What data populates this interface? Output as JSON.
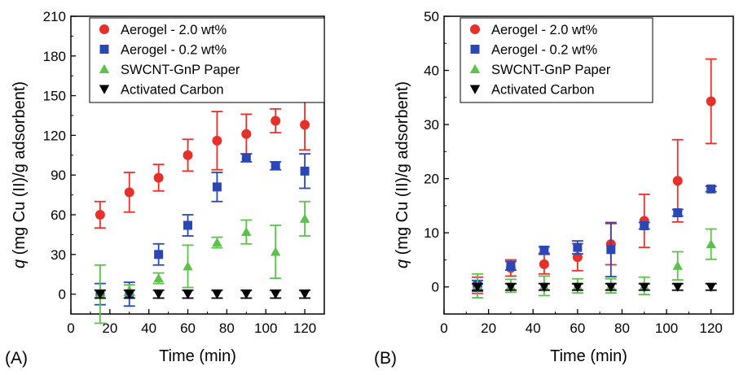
{
  "panel_labels": [
    "(A)",
    "(B)"
  ],
  "colors": {
    "aerogel_2": "#e8302a",
    "aerogel_02": "#2a47b8",
    "paper": "#5cc24a",
    "carbon": "#000000"
  },
  "chart_data": [
    {
      "type": "scatter",
      "panel": "(A)",
      "xlabel": "Time (min)",
      "ylabel_italic": "q",
      "ylabel_rest": " (mg Cu (II)/g adsorbent)",
      "xlim": [
        0,
        130
      ],
      "ylim": [
        -15,
        210
      ],
      "xticks": [
        0,
        20,
        40,
        60,
        80,
        100,
        120
      ],
      "yticks": [
        0,
        30,
        60,
        90,
        120,
        150,
        180,
        210
      ],
      "legend_position": "top-right",
      "series": [
        {
          "name": "Aerogel - 2.0 wt%",
          "marker": "circle",
          "color": "#e8302a",
          "x": [
            15,
            30,
            45,
            60,
            75,
            90,
            105,
            120
          ],
          "y": [
            60,
            77,
            88,
            105,
            116,
            121,
            131,
            128
          ],
          "err": [
            10,
            15,
            10,
            12,
            22,
            15,
            9,
            19
          ]
        },
        {
          "name": "Aerogel - 0.2 wt%",
          "marker": "square",
          "color": "#2a47b8",
          "x": [
            15,
            30,
            45,
            60,
            75,
            90,
            105,
            120
          ],
          "y": [
            0,
            0,
            30,
            52,
            81,
            103,
            97,
            93
          ],
          "err": [
            8,
            9,
            8,
            8,
            11,
            3,
            3,
            13
          ]
        },
        {
          "name": "SWCNT-GnP Paper",
          "marker": "triangle-up",
          "color": "#5cc24a",
          "x": [
            15,
            30,
            45,
            60,
            75,
            90,
            105,
            120
          ],
          "y": [
            0,
            3,
            12,
            21,
            39,
            47,
            32,
            57
          ],
          "err": [
            22,
            4,
            4,
            16,
            4,
            9,
            20,
            13
          ]
        },
        {
          "name": "Activated Carbon",
          "marker": "triangle-down",
          "color": "#000000",
          "x": [
            15,
            30,
            45,
            60,
            75,
            90,
            105,
            120
          ],
          "y": [
            0,
            0,
            0,
            0,
            0,
            0,
            0,
            0
          ],
          "err": [
            3,
            3,
            3,
            3,
            3,
            3,
            3,
            3
          ]
        }
      ]
    },
    {
      "type": "scatter",
      "panel": "(B)",
      "xlabel": "Time (min)",
      "ylabel_italic": "q",
      "ylabel_rest": " (mg Cu (II)/g adsorbent)",
      "xlim": [
        0,
        130
      ],
      "ylim": [
        -5,
        50
      ],
      "xticks": [
        0,
        20,
        40,
        60,
        80,
        100,
        120
      ],
      "yticks": [
        0,
        10,
        20,
        30,
        40,
        50
      ],
      "legend_position": "top-right",
      "series": [
        {
          "name": "Aerogel - 2.0 wt%",
          "marker": "circle",
          "color": "#e8302a",
          "x": [
            15,
            30,
            45,
            60,
            75,
            90,
            105,
            120
          ],
          "y": [
            0.3,
            3.5,
            4.2,
            5.5,
            7.9,
            12.2,
            19.6,
            34.3
          ],
          "err": [
            1.5,
            1.5,
            1.8,
            2.5,
            3.8,
            4.9,
            7.6,
            7.8
          ]
        },
        {
          "name": "Aerogel - 0.2 wt%",
          "marker": "square",
          "color": "#2a47b8",
          "x": [
            15,
            30,
            45,
            60,
            75,
            90,
            105,
            120
          ],
          "y": [
            0.2,
            3.9,
            6.8,
            7.3,
            6.9,
            11.3,
            13.7,
            18.1
          ],
          "err": [
            1.0,
            0.8,
            0.6,
            1.2,
            5.0,
            0.6,
            0.6,
            0.5
          ]
        },
        {
          "name": "SWCNT-GnP Paper",
          "marker": "triangle-up",
          "color": "#5cc24a",
          "x": [
            15,
            30,
            45,
            60,
            75,
            90,
            105,
            120
          ],
          "y": [
            0.2,
            0.2,
            0.2,
            0.2,
            0.2,
            0.2,
            3.9,
            7.9
          ],
          "err": [
            2.2,
            1.2,
            1.8,
            1.3,
            1.3,
            1.6,
            2.6,
            2.8
          ]
        },
        {
          "name": "Activated Carbon",
          "marker": "triangle-down",
          "color": "#000000",
          "x": [
            15,
            30,
            45,
            60,
            75,
            90,
            105,
            120
          ],
          "y": [
            0,
            0,
            0,
            0,
            0,
            0,
            0,
            0
          ],
          "err": [
            0.6,
            0.6,
            0.6,
            0.6,
            0.6,
            0.6,
            0.6,
            0.6
          ]
        }
      ]
    }
  ]
}
